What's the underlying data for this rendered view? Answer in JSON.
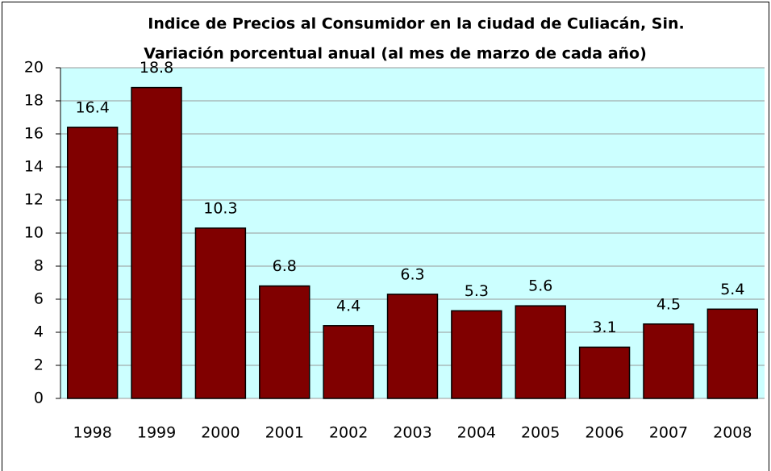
{
  "chart_data": {
    "type": "bar",
    "title": "Indice de Precios al Consumidor en la ciudad de Culiacán, Sin.",
    "subtitle": "Variación porcentual anual (al mes de marzo de cada año)",
    "categories": [
      "1998",
      "1999",
      "2000",
      "2001",
      "2002",
      "2003",
      "2004",
      "2005",
      "2006",
      "2007",
      "2008"
    ],
    "values": [
      16.4,
      18.8,
      10.3,
      6.8,
      4.4,
      6.3,
      5.3,
      5.6,
      3.1,
      4.5,
      5.4
    ],
    "color": "#800000",
    "ylim": [
      0,
      20
    ],
    "yticks": [
      0,
      2,
      4,
      6,
      8,
      10,
      12,
      14,
      16,
      18,
      20
    ],
    "grid": true
  }
}
